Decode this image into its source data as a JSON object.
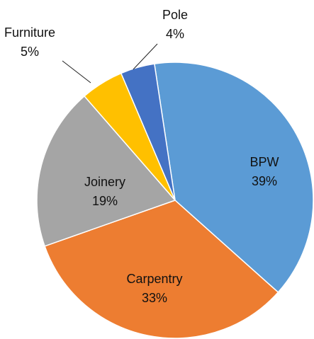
{
  "chart_data": {
    "type": "pie",
    "categories": [
      "BPW",
      "Carpentry",
      "Joinery",
      "Furniture",
      "Pole"
    ],
    "values": [
      39,
      33,
      19,
      5,
      4
    ],
    "value_labels": [
      "39%",
      "33%",
      "19%",
      "5%",
      "4%"
    ],
    "colors": [
      "#5b9bd5",
      "#ed7d31",
      "#a5a5a5",
      "#ffc000",
      "#4472c4"
    ]
  }
}
